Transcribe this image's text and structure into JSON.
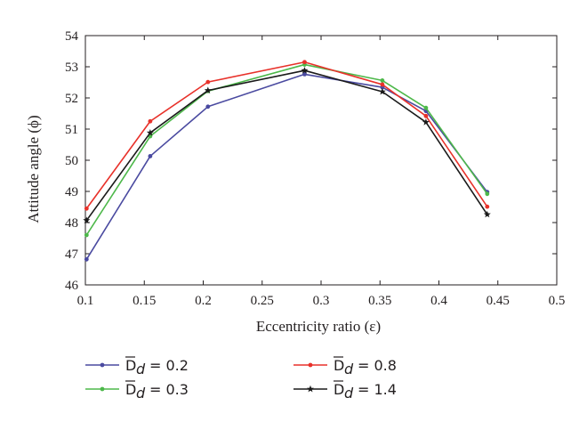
{
  "chart_data": {
    "type": "line",
    "xlabel": "Eccentricity ratio (ε)",
    "ylabel": "Attitude angle (ϕ)",
    "xlim": [
      0.1,
      0.5
    ],
    "ylim": [
      46,
      54
    ],
    "xticks": [
      "0.1",
      "0.15",
      "0.2",
      "0.25",
      "0.3",
      "0.35",
      "0.4",
      "0.45",
      "0.5"
    ],
    "yticks": [
      "46",
      "47",
      "48",
      "49",
      "50",
      "51",
      "52",
      "53",
      "54"
    ],
    "grid": false,
    "legend_placement": "bottom",
    "series": [
      {
        "name": "D̅d = 0.2",
        "symbol": "D",
        "subscript": "d",
        "value_text": "= 0.2",
        "color": "#4a4aa0",
        "marker": "dot",
        "x": [
          0.101,
          0.155,
          0.204,
          0.286,
          0.352,
          0.389,
          0.441
        ],
        "y": [
          46.82,
          50.13,
          51.72,
          52.76,
          52.34,
          51.58,
          48.98
        ]
      },
      {
        "name": "D̅d = 0.3",
        "symbol": "D",
        "subscript": "d",
        "value_text": "= 0.3",
        "color": "#4db84a",
        "marker": "dot",
        "x": [
          0.101,
          0.155,
          0.204,
          0.286,
          0.352,
          0.389,
          0.441
        ],
        "y": [
          47.6,
          50.77,
          52.22,
          53.07,
          52.56,
          51.68,
          48.92
        ]
      },
      {
        "name": "D̅d = 0.8",
        "symbol": "D",
        "subscript": "d",
        "value_text": "= 0.8",
        "color": "#e8312a",
        "marker": "dot",
        "x": [
          0.101,
          0.155,
          0.204,
          0.286,
          0.352,
          0.389,
          0.441
        ],
        "y": [
          48.45,
          51.25,
          52.51,
          53.15,
          52.43,
          51.42,
          48.51
        ]
      },
      {
        "name": "D̅d = 1.4",
        "symbol": "D",
        "subscript": "d",
        "value_text": "= 1.4",
        "color": "#1a1a1a",
        "marker": "star",
        "x": [
          0.101,
          0.155,
          0.204,
          0.286,
          0.352,
          0.389,
          0.441
        ],
        "y": [
          48.07,
          50.88,
          52.24,
          52.88,
          52.2,
          51.22,
          48.26
        ]
      }
    ]
  }
}
